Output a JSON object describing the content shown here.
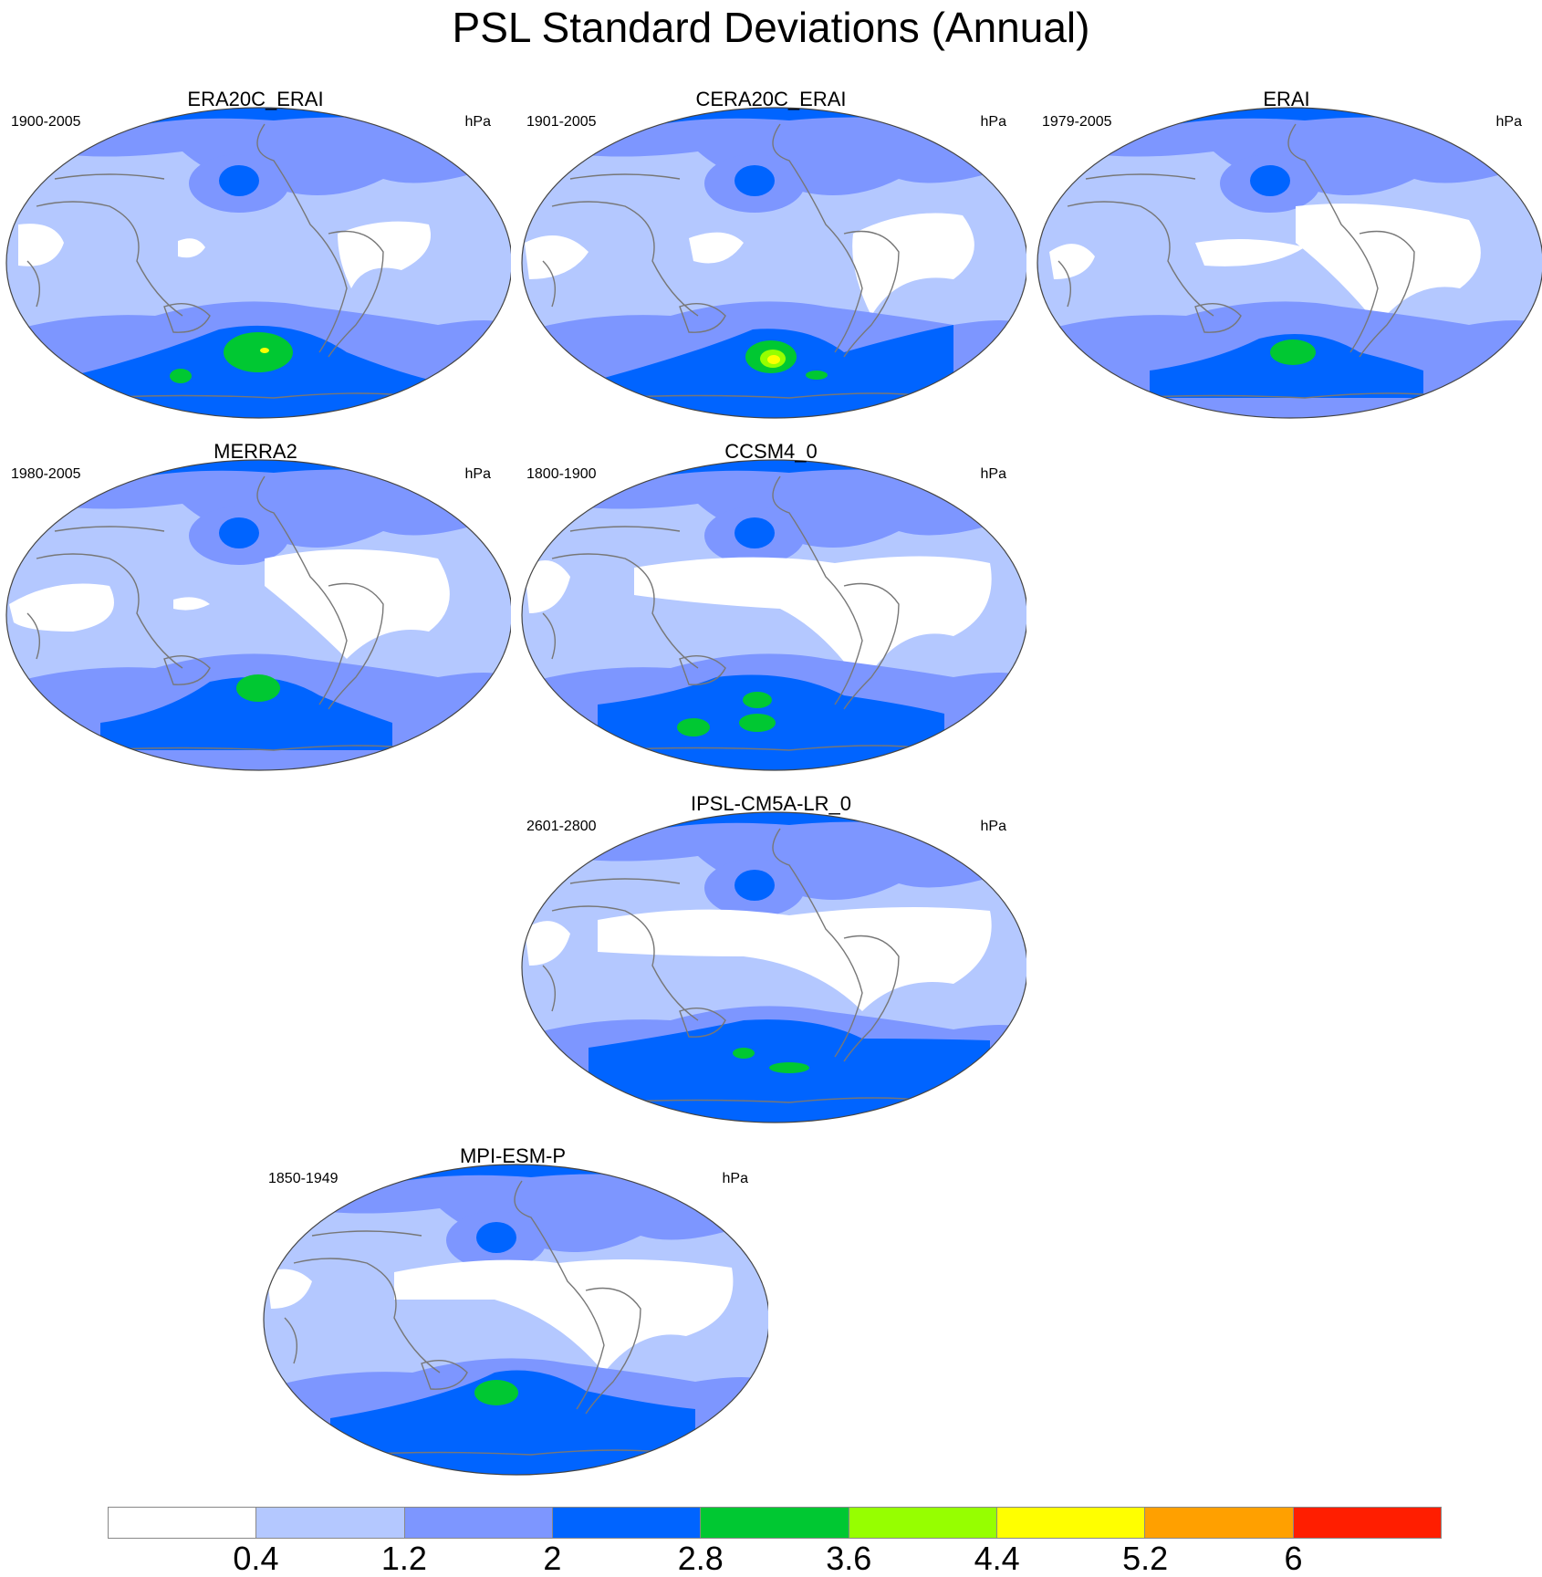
{
  "title": "PSL Standard Deviations (Annual)",
  "panels": [
    {
      "name": "ERA20C_ERAI",
      "years": "1900-2005",
      "units": "hPa",
      "palette": "era20c"
    },
    {
      "name": "CERA20C_ERAI",
      "years": "1901-2005",
      "units": "hPa",
      "palette": "cera20c"
    },
    {
      "name": "ERAI",
      "years": "1979-2005",
      "units": "hPa",
      "palette": "erai"
    },
    {
      "name": "MERRA2",
      "years": "1980-2005",
      "units": "hPa",
      "palette": "merra2"
    },
    {
      "name": "CCSM4_0",
      "years": "1800-1900",
      "units": "hPa",
      "palette": "ccsm4"
    },
    {
      "name": "IPSL-CM5A-LR_0",
      "years": "2601-2800",
      "units": "hPa",
      "palette": "ipsl"
    },
    {
      "name": "MPI-ESM-P",
      "years": "1850-1949",
      "units": "hPa",
      "palette": "mpi"
    }
  ],
  "colorbar": {
    "labels": [
      "0.4",
      "1.2",
      "2",
      "2.8",
      "3.6",
      "4.4",
      "5.2",
      "6"
    ],
    "colors": [
      "#ffffff",
      "#b4c8ff",
      "#7d96ff",
      "#0064ff",
      "#00c832",
      "#96ff00",
      "#ffff00",
      "#ffa000",
      "#ff1e00"
    ]
  }
}
